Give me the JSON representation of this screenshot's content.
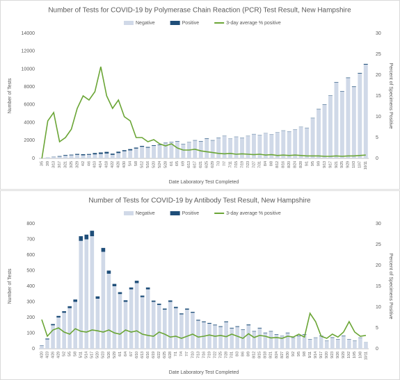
{
  "chart_data": [
    {
      "type": "bar",
      "title": "Number of Tests for COVID-19 by Polymerase Chain Reaction (PCR) Test Result, New Hampshire",
      "x_label": "Date Laboratory Test Completed",
      "y_label": "Number of Tests",
      "y2_label": "Percent of Specimens Positive",
      "categories": [
        "3/5",
        "3/9",
        "3/13",
        "3/17",
        "3/21",
        "3/25",
        "3/29",
        "4/2",
        "4/6",
        "4/10",
        "4/14",
        "4/18",
        "4/22",
        "4/26",
        "4/30",
        "5/4",
        "5/8",
        "5/12",
        "5/16",
        "5/20",
        "5/24",
        "5/28",
        "6/1",
        "6/5",
        "6/9",
        "6/13",
        "6/17",
        "6/21",
        "6/25",
        "6/29",
        "7/3",
        "7/7",
        "7/11",
        "7/15",
        "7/19",
        "7/23",
        "7/27",
        "7/31",
        "8/4",
        "8/8",
        "8/12",
        "8/16",
        "8/20",
        "8/24",
        "8/28",
        "9/1",
        "9/5",
        "9/9",
        "9/13",
        "9/17",
        "9/21",
        "9/25",
        "9/29",
        "10/3",
        "10/7",
        "10/11"
      ],
      "series": [
        {
          "name": "Negative",
          "color": "#d0d9e8",
          "values": [
            50,
            100,
            150,
            200,
            300,
            350,
            400,
            350,
            400,
            450,
            500,
            550,
            400,
            600,
            800,
            900,
            1100,
            1300,
            1200,
            1400,
            1500,
            1700,
            1800,
            1900,
            1600,
            1800,
            2000,
            1900,
            2200,
            2000,
            2300,
            2500,
            2200,
            2400,
            2300,
            2500,
            2700,
            2600,
            2800,
            2700,
            2900,
            3100,
            3000,
            3200,
            3500,
            3400,
            4500,
            5500,
            6000,
            7000,
            8500,
            7500,
            9000,
            8000,
            9500,
            10500
          ]
        },
        {
          "name": "Positive",
          "color": "#1f4e79",
          "values": [
            2,
            10,
            30,
            60,
            80,
            70,
            100,
            120,
            90,
            150,
            160,
            180,
            130,
            150,
            120,
            140,
            110,
            100,
            80,
            70,
            60,
            50,
            40,
            45,
            35,
            30,
            40,
            45,
            50,
            40,
            35,
            30,
            25,
            30,
            28,
            25,
            30,
            25,
            22,
            20,
            25,
            28,
            25,
            30,
            25,
            30,
            35,
            40,
            45,
            40,
            50,
            45,
            55,
            60,
            70,
            80
          ]
        },
        {
          "name": "3-day average % positive",
          "color": "#6aa535",
          "type": "line",
          "axis": "y2",
          "values": [
            0,
            9,
            11,
            4,
            5,
            7,
            12,
            15,
            14,
            16,
            22,
            15,
            12,
            14,
            10,
            9,
            5,
            5,
            4,
            4.5,
            3.5,
            3,
            3.5,
            2.5,
            2,
            2,
            2.2,
            1.8,
            1.6,
            1.4,
            1.2,
            1.1,
            1.2,
            1,
            1.1,
            1,
            0.9,
            1,
            0.8,
            0.9,
            0.7,
            0.8,
            0.7,
            0.8,
            0.7,
            0.6,
            0.6,
            0.6,
            0.5,
            0.5,
            0.6,
            0.5,
            0.6,
            0.6,
            0.7,
            0.8
          ]
        }
      ],
      "ylim": [
        0,
        14000
      ],
      "yticks": [
        0,
        2000,
        4000,
        6000,
        8000,
        10000,
        12000,
        14000
      ],
      "y2lim": [
        0,
        30
      ],
      "y2ticks": [
        0,
        5,
        10,
        15,
        20,
        25,
        30
      ],
      "grid": false
    },
    {
      "type": "bar",
      "title": "Number of Tests for COVID-19 by Antibody Test Result, New Hampshire",
      "x_label": "Date Laboratory Test Completed",
      "y_label": "Number of Tests",
      "y2_label": "Percent of Specimens Positive",
      "categories": [
        "4/20",
        "4/23",
        "4/26",
        "4/29",
        "5/2",
        "5/5",
        "5/8",
        "5/11",
        "5/14",
        "5/17",
        "5/20",
        "5/23",
        "5/26",
        "5/29",
        "6/1",
        "6/4",
        "6/7",
        "6/10",
        "6/13",
        "6/16",
        "6/19",
        "6/22",
        "6/25",
        "6/28",
        "7/1",
        "7/4",
        "7/7",
        "7/10",
        "7/13",
        "7/16",
        "7/19",
        "7/22",
        "7/25",
        "7/28",
        "7/31",
        "8/3",
        "8/6",
        "8/9",
        "8/12",
        "8/15",
        "8/18",
        "8/21",
        "8/24",
        "8/27",
        "8/30",
        "9/2",
        "9/5",
        "9/8",
        "9/11",
        "9/14",
        "9/17",
        "9/20",
        "9/23",
        "9/26",
        "9/29",
        "10/2",
        "10/5",
        "10/8",
        "10/11"
      ],
      "series": [
        {
          "name": "Negative",
          "color": "#d0d9e8",
          "values": [
            20,
            60,
            150,
            200,
            230,
            260,
            300,
            690,
            700,
            720,
            320,
            620,
            480,
            400,
            350,
            300,
            380,
            420,
            330,
            380,
            300,
            280,
            250,
            300,
            260,
            220,
            250,
            230,
            180,
            170,
            160,
            150,
            140,
            170,
            130,
            140,
            120,
            150,
            110,
            130,
            100,
            110,
            90,
            80,
            100,
            70,
            80,
            90,
            60,
            70,
            80,
            50,
            70,
            60,
            80,
            60,
            50,
            70,
            40
          ]
        },
        {
          "name": "Positive",
          "color": "#1f4e79",
          "values": [
            2,
            5,
            8,
            10,
            10,
            12,
            15,
            30,
            30,
            35,
            15,
            25,
            20,
            15,
            12,
            10,
            12,
            15,
            10,
            12,
            8,
            8,
            7,
            9,
            8,
            6,
            7,
            6,
            5,
            5,
            5,
            4,
            4,
            5,
            4,
            4,
            3,
            5,
            3,
            4,
            3,
            3,
            3,
            2,
            3,
            2,
            3,
            3,
            2,
            2,
            3,
            2,
            3,
            2,
            3,
            2,
            2,
            2,
            1
          ]
        },
        {
          "name": "3-day average % positive",
          "color": "#6aa535",
          "type": "line",
          "axis": "y2",
          "values": [
            7,
            3,
            4.5,
            5,
            4,
            3.5,
            4.8,
            4.2,
            4,
            4.5,
            4.3,
            4,
            4.5,
            3.8,
            3.5,
            4.5,
            4,
            4.3,
            3.5,
            3.2,
            3,
            4,
            3.5,
            2.8,
            3,
            2.5,
            3,
            3.5,
            2.8,
            3,
            3.3,
            3,
            3.2,
            2.9,
            3.5,
            3,
            2.5,
            3.6,
            2.7,
            3.2,
            3,
            2.6,
            2.7,
            2.5,
            3,
            2.8,
            3.5,
            2.8,
            8.5,
            6.5,
            3,
            2.5,
            3.5,
            2.8,
            4,
            6.5,
            4,
            3,
            3.2
          ]
        }
      ],
      "ylim": [
        0,
        800
      ],
      "yticks": [
        0,
        100,
        200,
        300,
        400,
        500,
        600,
        700,
        800
      ],
      "y2lim": [
        0,
        30
      ],
      "y2ticks": [
        0,
        5,
        10,
        15,
        20,
        25,
        30
      ],
      "grid": false
    }
  ]
}
